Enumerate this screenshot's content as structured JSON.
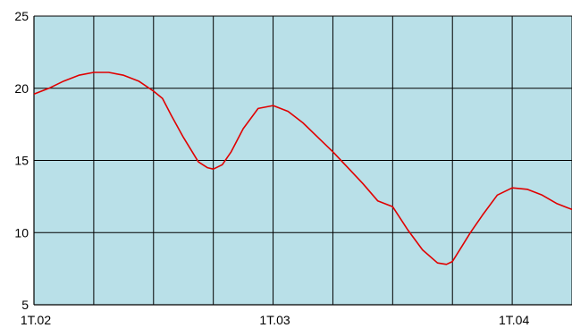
{
  "chart_data": {
    "type": "line",
    "title": "",
    "xlabel": "",
    "ylabel": "",
    "x_tick_labels": [
      "1T.02",
      "1T.03",
      "1T.04"
    ],
    "x_ticks": [
      0,
      4,
      8
    ],
    "xlim": [
      0,
      9
    ],
    "ylim": [
      5,
      25
    ],
    "y_ticks": [
      5,
      10,
      15,
      20,
      25
    ],
    "grid": true,
    "colors": {
      "plot_background": "#b9e0e8",
      "grid": "#000000",
      "series_line": "#e00000"
    },
    "series": [
      {
        "x": [
          0,
          0.25,
          0.5,
          0.75,
          1.0,
          1.25,
          1.5,
          1.75,
          2.0,
          2.15,
          2.3,
          2.5,
          2.75,
          2.9,
          3.0,
          3.15,
          3.3,
          3.5,
          3.75,
          4.0,
          4.25,
          4.5,
          4.75,
          5.0,
          5.25,
          5.5,
          5.75,
          6.0,
          6.25,
          6.5,
          6.75,
          6.9,
          7.0,
          7.15,
          7.3,
          7.5,
          7.75,
          8.0,
          8.25,
          8.5,
          8.75,
          9.0
        ],
        "values": [
          19.6,
          20.0,
          20.5,
          20.9,
          21.1,
          21.1,
          20.9,
          20.5,
          19.8,
          19.3,
          18.1,
          16.6,
          14.9,
          14.5,
          14.4,
          14.7,
          15.6,
          17.2,
          18.6,
          18.8,
          18.4,
          17.6,
          16.6,
          15.6,
          14.5,
          13.4,
          12.2,
          11.8,
          10.2,
          8.8,
          7.9,
          7.8,
          8.0,
          9.0,
          10.0,
          11.2,
          12.6,
          13.1,
          13.0,
          12.6,
          12.0,
          11.6
        ]
      }
    ]
  }
}
